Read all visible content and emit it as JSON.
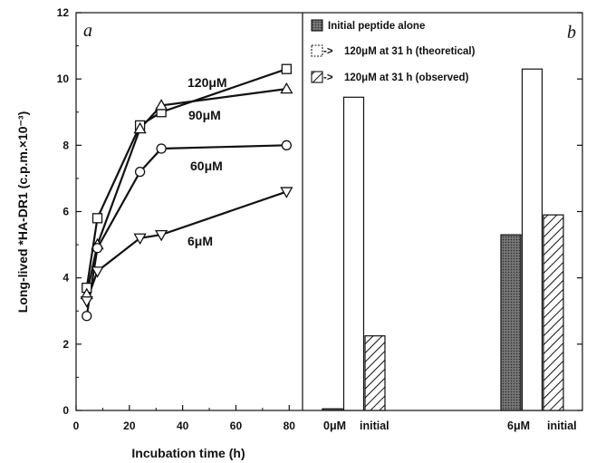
{
  "chart_data": [
    {
      "panel": "a",
      "type": "line",
      "xlabel": "Incubation time (h)",
      "ylabel": "Long-lived *HA-DR1 (c.p.m.×10⁻³)",
      "xlim": [
        0,
        85
      ],
      "ylim": [
        0,
        12
      ],
      "xticks": [
        "0",
        "20",
        "40",
        "60",
        "80"
      ],
      "yticks": [
        "0",
        "2",
        "4",
        "6",
        "8",
        "10",
        "12"
      ],
      "series": [
        {
          "name": "120μM",
          "marker": "square",
          "x": [
            4,
            8,
            24,
            32,
            79
          ],
          "y": [
            3.7,
            5.8,
            8.6,
            9.0,
            10.3
          ]
        },
        {
          "name": "90μM",
          "marker": "triangle-up",
          "x": [
            4,
            8,
            24,
            32,
            79
          ],
          "y": [
            3.5,
            5.0,
            8.5,
            9.2,
            9.7
          ]
        },
        {
          "name": "60μM",
          "marker": "circle",
          "x": [
            4,
            8,
            24,
            32,
            79
          ],
          "y": [
            2.85,
            4.9,
            7.2,
            7.9,
            8.0
          ]
        },
        {
          "name": "6μM",
          "marker": "triangle-down",
          "x": [
            4,
            8,
            24,
            32,
            79
          ],
          "y": [
            3.3,
            4.2,
            5.2,
            5.3,
            6.6
          ]
        }
      ]
    },
    {
      "panel": "b",
      "type": "bar",
      "categories": [
        "0μM",
        "initial",
        "6μM",
        "initial"
      ],
      "ylim": [
        0,
        12
      ],
      "legend": [
        {
          "label": "Initial peptide alone",
          "pattern": "dark"
        },
        {
          "label": "120μM at 31 h (theoretical)",
          "pattern": "open"
        },
        {
          "label": "120μM at 31 h (observed)",
          "pattern": "hatched"
        }
      ],
      "groups": [
        {
          "name": "0μM initial",
          "values": {
            "alone": 0.05,
            "theoretical": 9.45,
            "observed": 2.25
          }
        },
        {
          "name": "6μM initial",
          "values": {
            "alone": 5.3,
            "theoretical": 10.3,
            "observed": 5.9
          }
        }
      ]
    }
  ]
}
